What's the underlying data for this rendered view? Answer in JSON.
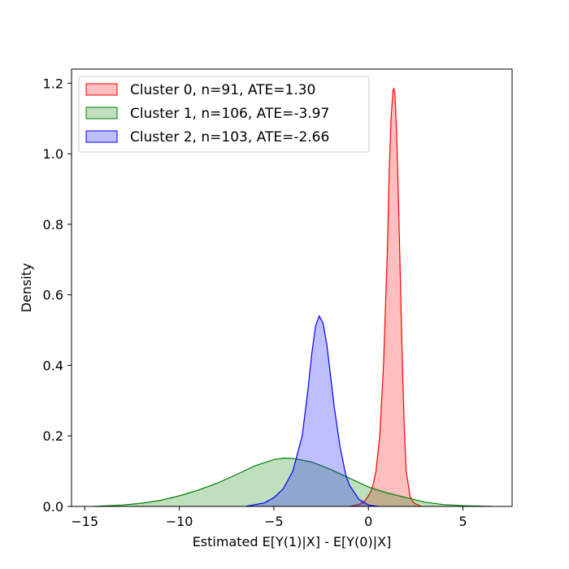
{
  "chart_data": {
    "type": "area",
    "title": "",
    "xlabel": "Estimated E[Y(1)|X] - E[Y(0)|X]",
    "ylabel": "Density",
    "xlim": [
      -15.7,
      7.6
    ],
    "ylim": [
      0,
      1.24
    ],
    "xticks": [
      -15,
      -10,
      -5,
      0,
      5
    ],
    "yticks": [
      0.0,
      0.2,
      0.4,
      0.6,
      0.8,
      1.0,
      1.2
    ],
    "xtick_labels": [
      "−15",
      "−10",
      "−5",
      "0",
      "5"
    ],
    "ytick_labels": [
      "0.0",
      "0.2",
      "0.4",
      "0.6",
      "0.8",
      "1.0",
      "1.2"
    ],
    "grid": false,
    "legend_position": "top-left",
    "series": [
      {
        "name": "Cluster 0, n=91, ATE=1.30",
        "color": "#ff0000",
        "fill": "#ff0000",
        "x": [
          -1.0,
          -0.5,
          -0.2,
          0.0,
          0.2,
          0.4,
          0.6,
          0.8,
          1.0,
          1.1,
          1.2,
          1.3,
          1.35,
          1.4,
          1.5,
          1.6,
          1.7,
          1.8,
          1.9,
          2.0,
          2.2,
          2.4,
          2.8
        ],
        "y": [
          0.0,
          0.005,
          0.015,
          0.03,
          0.05,
          0.1,
          0.2,
          0.4,
          0.72,
          0.95,
          1.1,
          1.18,
          1.185,
          1.17,
          1.05,
          0.85,
          0.62,
          0.4,
          0.22,
          0.1,
          0.03,
          0.01,
          0.0
        ]
      },
      {
        "name": "Cluster 1, n=106, ATE=-3.97",
        "color": "#008000",
        "fill": "#008000",
        "x": [
          -14.5,
          -13,
          -12,
          -11,
          -10,
          -9,
          -8,
          -7,
          -6,
          -5,
          -4.5,
          -4,
          -3,
          -2,
          -1,
          0,
          1,
          2,
          3,
          4,
          5,
          6.5
        ],
        "y": [
          0.0,
          0.004,
          0.009,
          0.017,
          0.03,
          0.046,
          0.066,
          0.09,
          0.115,
          0.133,
          0.137,
          0.136,
          0.126,
          0.105,
          0.08,
          0.055,
          0.038,
          0.025,
          0.012,
          0.005,
          0.002,
          0.0
        ]
      },
      {
        "name": "Cluster 2, n=103, ATE=-2.66",
        "color": "#0000ff",
        "fill": "#0000ff",
        "x": [
          -6.5,
          -5.5,
          -5.0,
          -4.5,
          -4.0,
          -3.5,
          -3.2,
          -3.0,
          -2.8,
          -2.6,
          -2.4,
          -2.2,
          -2.0,
          -1.8,
          -1.5,
          -1.2,
          -1.0,
          -0.5,
          0.0,
          0.5
        ],
        "y": [
          0.0,
          0.01,
          0.025,
          0.05,
          0.1,
          0.2,
          0.33,
          0.43,
          0.51,
          0.54,
          0.52,
          0.46,
          0.37,
          0.28,
          0.17,
          0.09,
          0.06,
          0.02,
          0.004,
          0.0
        ]
      }
    ]
  }
}
